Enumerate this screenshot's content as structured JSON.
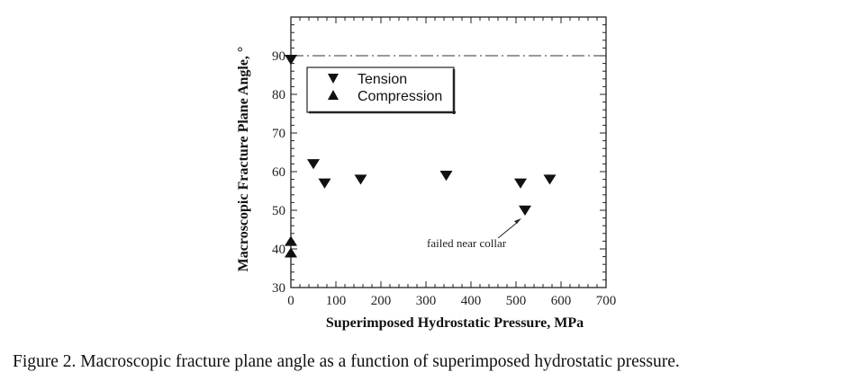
{
  "chart_data": {
    "type": "scatter",
    "xlabel": "Superimposed Hydrostatic Pressure, MPa",
    "ylabel": "Macroscopic Fracture Plane Angle, °",
    "xlim": [
      0,
      700
    ],
    "ylim": [
      30,
      100
    ],
    "x_ticks": [
      0,
      100,
      200,
      300,
      400,
      500,
      600,
      700
    ],
    "y_ticks": [
      30,
      40,
      50,
      60,
      70,
      80,
      90
    ],
    "grid": false,
    "legend_position": "top-left",
    "series": [
      {
        "name": "Tension",
        "marker": "triangle-down",
        "points": [
          {
            "x": 0,
            "y": 89
          },
          {
            "x": 50,
            "y": 62
          },
          {
            "x": 75,
            "y": 57
          },
          {
            "x": 155,
            "y": 58
          },
          {
            "x": 345,
            "y": 59
          },
          {
            "x": 510,
            "y": 57
          },
          {
            "x": 520,
            "y": 50
          },
          {
            "x": 575,
            "y": 58
          }
        ]
      },
      {
        "name": "Compression",
        "marker": "triangle-up",
        "points": [
          {
            "x": 0,
            "y": 42
          },
          {
            "x": 0,
            "y": 39
          }
        ]
      }
    ],
    "reference_line": {
      "y": 90,
      "style": "dash-dot"
    },
    "annotations": [
      {
        "text": "failed near collar",
        "points_to": {
          "x": 520,
          "y": 50
        }
      }
    ]
  },
  "caption": "Figure 2.  Macroscopic fracture plane angle as a function of superimposed hydrostatic pressure."
}
